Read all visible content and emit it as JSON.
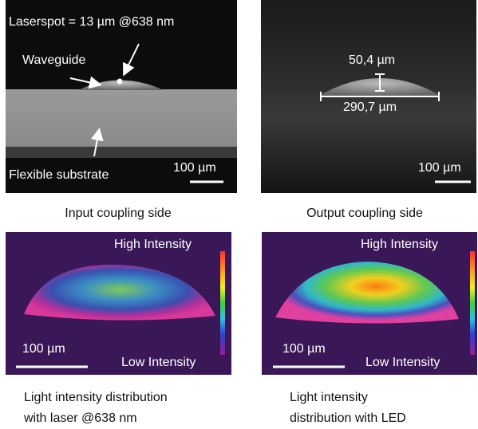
{
  "panels": [
    {
      "labels": [
        "Laserspot = 13 µm @638 nm",
        "Waveguide",
        "Flexible substrate"
      ],
      "scale": "100 µm",
      "caption": [
        "Input coupling side"
      ]
    },
    {
      "labels": [
        "50,4 µm",
        "290,7 µm"
      ],
      "scale": "100 µm",
      "caption": [
        "Output coupling side"
      ]
    },
    {
      "labels": [
        "High Intensity",
        "Low Intensity"
      ],
      "scale": "100 µm",
      "caption": [
        "Light intensity distribution",
        "with laser @638 nm"
      ]
    },
    {
      "labels": [
        "High Intensity",
        "Low Intensity"
      ],
      "scale": "100 µm",
      "caption": [
        "Light intensity",
        "distribution with LED"
      ]
    }
  ]
}
